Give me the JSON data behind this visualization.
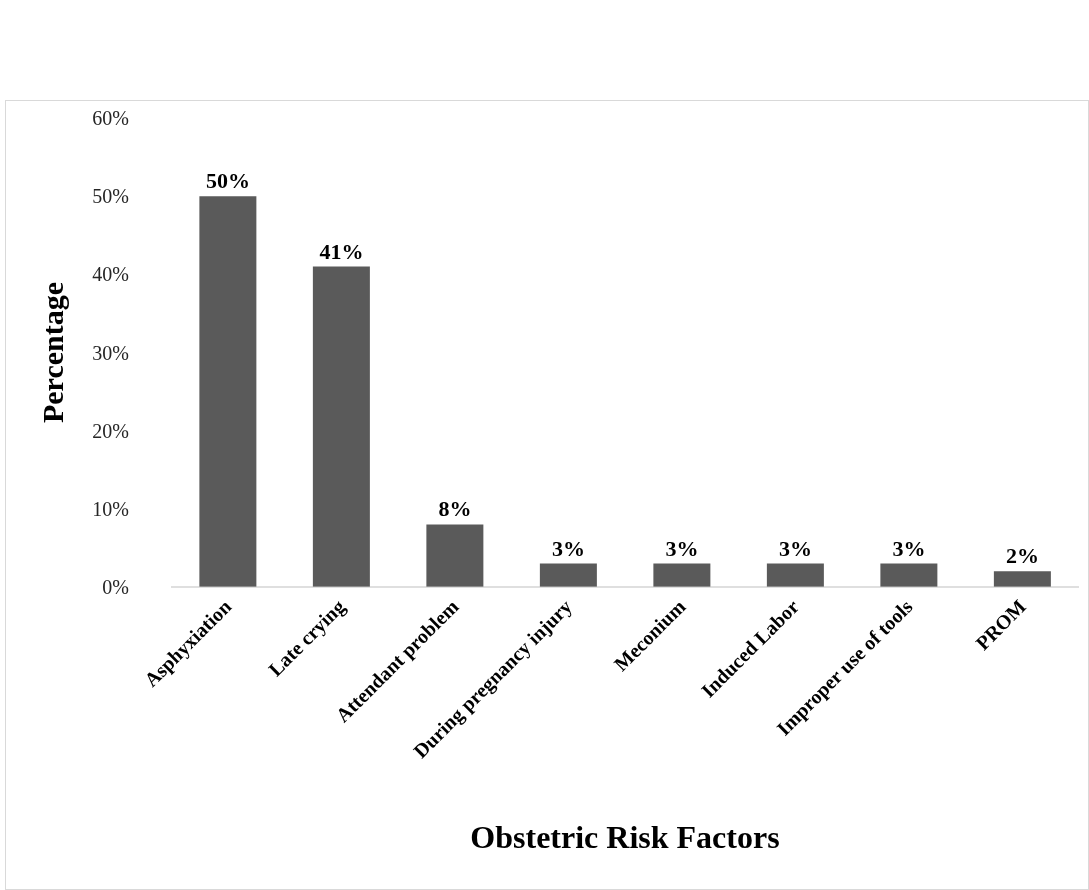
{
  "chart_data": {
    "type": "bar",
    "xlabel": "Obstetric Risk Factors",
    "ylabel": "Percentage",
    "categories": [
      "Asphyxiation",
      "Late crying",
      "Attendant problem",
      "During pregnancy injury",
      "Meconium",
      "Induced Labor",
      "Improper use of tools",
      "PROM"
    ],
    "values": [
      50,
      41,
      8,
      3,
      3,
      3,
      3,
      2
    ],
    "value_labels": [
      "50%",
      "41%",
      "8%",
      "3%",
      "3%",
      "3%",
      "3%",
      "2%"
    ],
    "color": "#5a5a5a",
    "ylim": [
      0,
      60
    ],
    "yticks": [
      {
        "value": 0,
        "label": "0%"
      },
      {
        "value": 10,
        "label": "10%"
      },
      {
        "value": 20,
        "label": "20%"
      },
      {
        "value": 30,
        "label": "30%"
      },
      {
        "value": 40,
        "label": "40%"
      },
      {
        "value": 50,
        "label": "50%"
      },
      {
        "value": 60,
        "label": "60%"
      }
    ],
    "grid": false,
    "legend": false
  }
}
